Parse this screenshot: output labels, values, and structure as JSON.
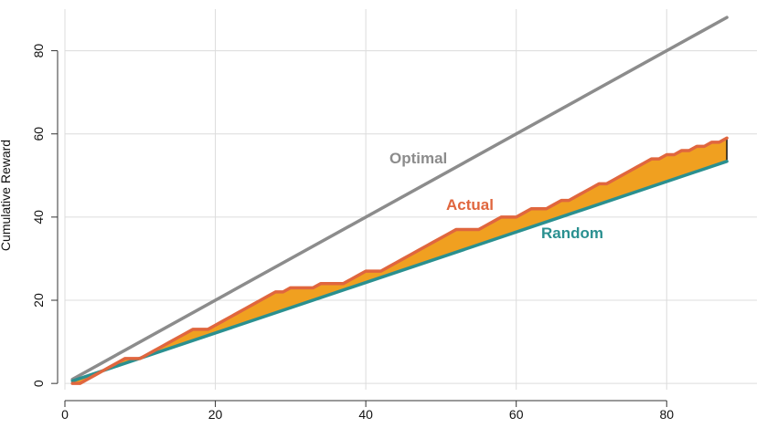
{
  "chart_data": {
    "type": "line",
    "title": "",
    "xlabel": "",
    "ylabel": "Cumulative Reward",
    "xlim": [
      0,
      92
    ],
    "ylim": [
      -1.5,
      90
    ],
    "x_ticks": [
      0,
      20,
      40,
      60,
      80
    ],
    "y_ticks": [
      0,
      20,
      40,
      60,
      80
    ],
    "grid": true,
    "legend": "none",
    "colors": {
      "optimal": "#8c8c8c",
      "actual": "#e0663e",
      "random": "#2a9090",
      "fill": "#f0a020",
      "grid": "#dcdcdc",
      "axis": "#333333"
    },
    "series": [
      {
        "name": "Optimal",
        "x": [
          1,
          88
        ],
        "values": [
          1,
          88
        ]
      },
      {
        "name": "Actual",
        "x": [
          1,
          2,
          3,
          4,
          5,
          6,
          7,
          8,
          9,
          10,
          11,
          12,
          13,
          14,
          15,
          16,
          17,
          18,
          19,
          20,
          21,
          22,
          23,
          24,
          25,
          26,
          27,
          28,
          29,
          30,
          31,
          32,
          33,
          34,
          35,
          36,
          37,
          38,
          39,
          40,
          41,
          42,
          43,
          44,
          45,
          46,
          47,
          48,
          49,
          50,
          51,
          52,
          53,
          54,
          55,
          56,
          57,
          58,
          59,
          60,
          61,
          62,
          63,
          64,
          65,
          66,
          67,
          68,
          69,
          70,
          71,
          72,
          73,
          74,
          75,
          76,
          77,
          78,
          79,
          80,
          81,
          82,
          83,
          84,
          85,
          86,
          87,
          88
        ],
        "values": [
          0,
          0,
          1,
          2,
          3,
          4,
          5,
          6,
          6,
          6,
          7,
          8,
          9,
          10,
          11,
          12,
          13,
          13,
          13,
          14,
          15,
          16,
          17,
          18,
          19,
          20,
          21,
          22,
          22,
          23,
          23,
          23,
          23,
          24,
          24,
          24,
          24,
          25,
          26,
          27,
          27,
          27,
          28,
          29,
          30,
          31,
          32,
          33,
          34,
          35,
          36,
          37,
          37,
          37,
          37,
          38,
          39,
          40,
          40,
          40,
          41,
          42,
          42,
          42,
          43,
          44,
          44,
          45,
          46,
          47,
          48,
          48,
          49,
          50,
          51,
          52,
          53,
          54,
          54,
          55,
          55,
          56,
          56,
          57,
          57,
          58,
          58,
          59
        ]
      },
      {
        "name": "Random",
        "x": [
          1,
          88
        ],
        "values": [
          0.6,
          53.4
        ]
      }
    ]
  }
}
